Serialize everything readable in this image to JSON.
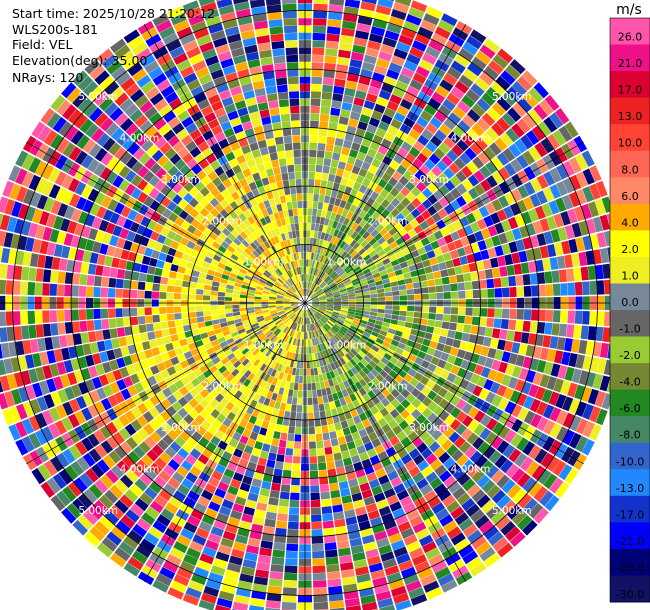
{
  "header": {
    "start_time": "Start time: 2025/10/28 21:20:12",
    "instrument": "WLS200s-181",
    "field": "Field: VEL",
    "elevation": "Elevation(deg): 35.00",
    "nrays": "NRays: 120"
  },
  "range_rings": [
    {
      "label": "1.00km",
      "range_km": 1
    },
    {
      "label": "2.00km",
      "range_km": 2
    },
    {
      "label": "3.00km",
      "range_km": 3
    },
    {
      "label": "4.00km",
      "range_km": 4
    },
    {
      "label": "5.00km",
      "range_km": 5
    }
  ],
  "chart_data": {
    "type": "ppi",
    "field": "VEL",
    "units": "m/s",
    "elevation_deg": 35.0,
    "n_rays": 120,
    "max_range_km": 5.5,
    "inner_structure": "near-range (<2.6 km) mostly yellow (+2 to +4) to the west/north-west, green (-1 to -6) to the east; far range noisy (all colors)",
    "colorbar": {
      "unit": "m/s",
      "ticks": [
        "26.0",
        "21.0",
        "17.0",
        "13.0",
        "10.0",
        "8.0",
        "6.0",
        "4.0",
        "2.0",
        "1.0",
        "0.0",
        "-1.0",
        "-2.0",
        "-4.0",
        "-6.0",
        "-8.0",
        "-10.0",
        "-13.0",
        "-17.0",
        "-21.0",
        "-26.0",
        "-30.0"
      ],
      "colors": [
        "#ff55aa",
        "#ee1188",
        "#dd0033",
        "#ee2222",
        "#ff4433",
        "#ff6655",
        "#ff8866",
        "#ffaa00",
        "#ffff00",
        "#eeee22",
        "#778899",
        "#666666",
        "#99cc33",
        "#778833",
        "#228822",
        "#448866",
        "#3366cc",
        "#2288ff",
        "#1133cc",
        "#0000ff",
        "#000077",
        "#111166"
      ]
    }
  }
}
